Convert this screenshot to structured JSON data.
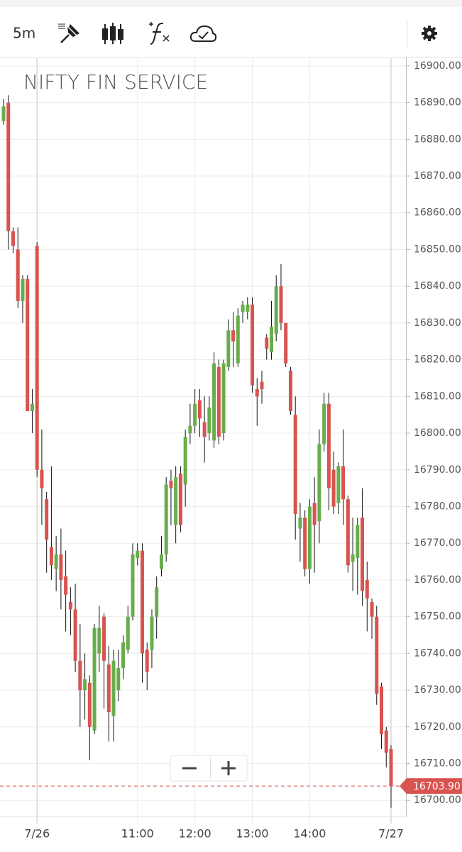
{
  "toolbar": {
    "interval": "5m"
  },
  "chart_data": {
    "type": "candlestick",
    "title": "NIFTY FIN SERVICE",
    "categories": [
      null,
      null,
      null,
      null,
      null,
      null,
      null,
      "7/26",
      null,
      null,
      null,
      null,
      null,
      null,
      null,
      null,
      null,
      null,
      null,
      null,
      null,
      null,
      null,
      null,
      null,
      null,
      null,
      null,
      "11:00",
      null,
      null,
      null,
      null,
      null,
      null,
      null,
      null,
      null,
      null,
      null,
      "12:00",
      null,
      null,
      null,
      null,
      null,
      null,
      null,
      null,
      null,
      null,
      null,
      "13:00",
      null,
      null,
      null,
      null,
      null,
      null,
      null,
      null,
      null,
      null,
      null,
      "14:00",
      null,
      null,
      null,
      null,
      null,
      null,
      null,
      null,
      null,
      null,
      null,
      null,
      null,
      null,
      null,
      null,
      "7/27"
    ],
    "open": [
      16885,
      16890,
      16855,
      16850,
      16836,
      16842,
      16806,
      16851,
      16790,
      16782,
      16769,
      16763,
      16767,
      16761,
      16754,
      16752,
      16738,
      16730,
      16732,
      16719,
      16740,
      16750,
      16737,
      16723,
      16730,
      16736,
      16741,
      16750,
      16766,
      16768,
      16741,
      16741,
      16750,
      16763,
      16767,
      16787,
      16775,
      16789,
      16786,
      16800,
      16802,
      16809,
      16803,
      16800,
      16798,
      16818,
      16800,
      16818,
      16828,
      16819,
      16833,
      16833,
      16835,
      16812,
      16814,
      16826,
      16822,
      16827,
      16840,
      16830,
      16817,
      16805,
      16774,
      16777,
      16763,
      16781,
      16776,
      16797,
      16808,
      16790,
      16781,
      16791,
      16782,
      16765,
      16766,
      16777,
      16760,
      16754,
      16750,
      16731,
      16719,
      16714
    ],
    "high": [
      16891,
      16892,
      16856,
      16856,
      16843,
      16843,
      16812,
      16852,
      16801,
      16784,
      16791,
      16772,
      16774,
      16768,
      16758,
      16759,
      16748,
      16740,
      16734,
      16748,
      16753,
      16751,
      16742,
      16741,
      16741,
      16745,
      16753,
      16770,
      16770,
      16770,
      16743,
      16752,
      16761,
      16772,
      16788,
      16790,
      16791,
      16791,
      16801,
      16808,
      16812,
      16812,
      16810,
      16810,
      16822,
      16820,
      16820,
      16831,
      16833,
      16834,
      16836,
      16837,
      16837,
      16815,
      16817,
      16827,
      16836,
      16843,
      16846,
      16830,
      16818,
      16810,
      16781,
      16779,
      16782,
      16788,
      16801,
      16811,
      16811,
      16795,
      16792,
      16801,
      16783,
      16777,
      16777,
      16785,
      16765,
      16755,
      16753,
      16732,
      16720,
      16715
    ],
    "low": [
      16884,
      16850,
      16849,
      16834,
      16830,
      16806,
      16800,
      16788,
      16775,
      16762,
      16760,
      16757,
      16752,
      16746,
      16745,
      16735,
      16720,
      16722,
      16711,
      16718,
      16735,
      16725,
      16716,
      16716,
      16727,
      16733,
      16740,
      16749,
      16764,
      16732,
      16730,
      16736,
      16744,
      16761,
      16765,
      16775,
      16770,
      16773,
      16780,
      16797,
      16800,
      16799,
      16792,
      16798,
      16796,
      16797,
      16798,
      16817,
      16818,
      16818,
      16830,
      16831,
      16811,
      16802,
      16808,
      16820,
      16820,
      16825,
      16828,
      16818,
      16805,
      16771,
      16765,
      16761,
      16759,
      16762,
      16770,
      16795,
      16779,
      16778,
      16778,
      16775,
      16762,
      16757,
      16756,
      16753,
      16746,
      16744,
      16726,
      16714,
      16709,
      16698
    ],
    "close": [
      16889,
      16855,
      16851,
      16836,
      16842,
      16806,
      16808,
      16790,
      16785,
      16771,
      16764,
      16767,
      16760,
      16756,
      16752,
      16738,
      16730,
      16733,
      16720,
      16747,
      16747,
      16738,
      16724,
      16738,
      16736,
      16743,
      16750,
      16767,
      16768,
      16740,
      16735,
      16750,
      16758,
      16767,
      16786,
      16785,
      16788,
      16775,
      16799,
      16802,
      16808,
      16804,
      16799,
      16807,
      16819,
      16799,
      16819,
      16828,
      16825,
      16832,
      16835,
      16835,
      16813,
      16810,
      16812,
      16823,
      16829,
      16840,
      16830,
      16819,
      16806,
      16778,
      16777,
      16763,
      16780,
      16775,
      16797,
      16808,
      16785,
      16780,
      16791,
      16782,
      16764,
      16767,
      16775,
      16757,
      16755,
      16750,
      16729,
      16718,
      16713,
      16703.9
    ],
    "up_color": "#68ad4c",
    "down_color": "#d9534f",
    "ylim": [
      16695.6,
      16902.1
    ],
    "yticks": [
      {
        "value": 16700,
        "label": "16700.00"
      },
      {
        "value": 16710,
        "label": "16710.00"
      },
      {
        "value": 16720,
        "label": "16720.00"
      },
      {
        "value": 16730,
        "label": "16730.00"
      },
      {
        "value": 16740,
        "label": "16740.00"
      },
      {
        "value": 16750,
        "label": "16750.00"
      },
      {
        "value": 16760,
        "label": "16760.00"
      },
      {
        "value": 16770,
        "label": "16770.00"
      },
      {
        "value": 16780,
        "label": "16780.00"
      },
      {
        "value": 16790,
        "label": "16790.00"
      },
      {
        "value": 16800,
        "label": "16800.00"
      },
      {
        "value": 16810,
        "label": "16810.00"
      },
      {
        "value": 16820,
        "label": "16820.00"
      },
      {
        "value": 16830,
        "label": "16830.00"
      },
      {
        "value": 16840,
        "label": "16840.00"
      },
      {
        "value": 16850,
        "label": "16850.00"
      },
      {
        "value": 16860,
        "label": "16860.00"
      },
      {
        "value": 16870,
        "label": "16870.00"
      },
      {
        "value": 16880,
        "label": "16880.00"
      },
      {
        "value": 16890,
        "label": "16890.00"
      },
      {
        "value": 16900,
        "label": "16900.00"
      }
    ],
    "last_price": {
      "value": 16703.9,
      "label": "16703.90"
    },
    "grid": true
  }
}
